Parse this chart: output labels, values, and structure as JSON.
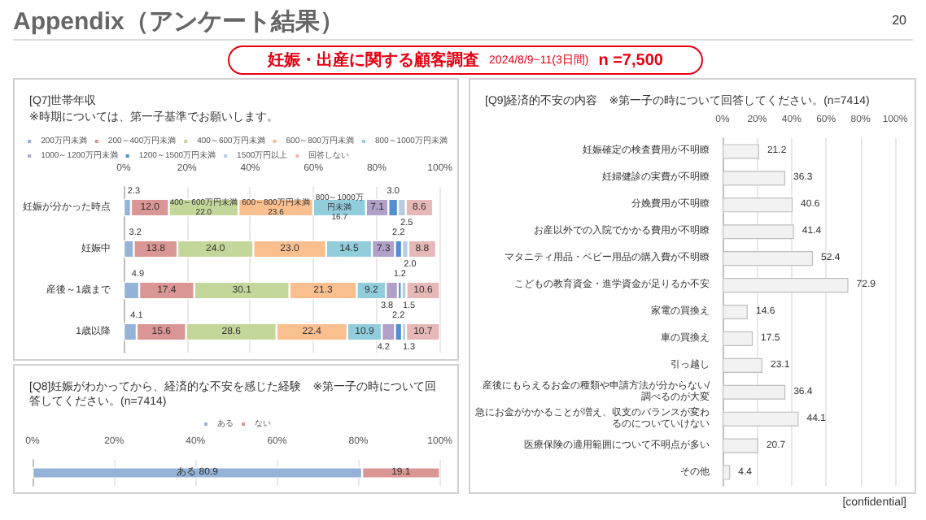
{
  "chart_data": [
    {
      "type": "other",
      "title": "Appendix（アンケート結果）",
      "annotations": [
        "20",
        "妊娠・出産に関する顧客調査",
        "2024/8/9~11(3日間)",
        "n =7,500",
        "[confidential]"
      ]
    },
    {
      "type": "bar",
      "orientation": "horizontal",
      "stacked": true,
      "title": "[Q7]世帯年収",
      "subtitle": "※時期については、第一子基準でお願いします。",
      "legend": "top",
      "grid": "x",
      "categories": [
        "妊娠が分かった時点",
        "妊娠中",
        "産後～1歳まで",
        "1歳以降"
      ],
      "xlim": [
        0,
        100
      ],
      "xticks": [
        {
          "value": 0,
          "label": "0%"
        },
        {
          "value": 20,
          "label": "20%"
        },
        {
          "value": 40,
          "label": "40%"
        },
        {
          "value": 60,
          "label": "60%"
        },
        {
          "value": 80,
          "label": "80%"
        },
        {
          "value": 100,
          "label": "100%"
        }
      ],
      "series": [
        {
          "name": "200万円未満",
          "color": "#95b3d7",
          "values": [
            2.3,
            3.2,
            4.9,
            4.1
          ],
          "value_labels": [
            "2.3",
            "3.2",
            "4.9",
            "4.1"
          ]
        },
        {
          "name": "200～400万円未満",
          "color": "#da9694",
          "values": [
            12.0,
            13.8,
            17.4,
            15.6
          ],
          "value_labels": [
            "12.0",
            "13.8",
            "17.4",
            "15.6"
          ]
        },
        {
          "name": "400～600万円未満",
          "color": "#c4d79b",
          "values": [
            22.0,
            24.0,
            30.1,
            28.6
          ],
          "value_labels": [
            "400～600万円未満\n22.0",
            "24.0",
            "30.1",
            "28.6"
          ]
        },
        {
          "name": "600～800万円未満",
          "color": "#fabf8f",
          "values": [
            23.6,
            23.0,
            21.3,
            22.4
          ],
          "value_labels": [
            "600～800万円未満\n23.6",
            "23.0",
            "21.3",
            "22.4"
          ]
        },
        {
          "name": "800～1000万円未満",
          "color": "#92cddc",
          "values": [
            16.7,
            14.5,
            9.2,
            10.9
          ],
          "value_labels": [
            "800～1000万円未満\n16.7",
            "14.5",
            "9.2",
            "10.9"
          ]
        },
        {
          "name": "1000～1200万円未満",
          "color": "#b1a0c7",
          "values": [
            7.1,
            7.3,
            3.8,
            4.2
          ],
          "value_labels": [
            "7.1",
            "7.3",
            "3.8",
            "4.2"
          ]
        },
        {
          "name": "1200～1500万円未満",
          "color": "#538dd5",
          "values": [
            3.0,
            2.2,
            1.2,
            2.2
          ],
          "value_labels": [
            "3.0",
            "2.2",
            "1.2",
            "2.2"
          ]
        },
        {
          "name": "1500万円以上",
          "color": "#b8cce4",
          "values": [
            2.5,
            2.0,
            1.5,
            1.3
          ],
          "value_labels": [
            "2.5",
            "2.0",
            "1.5",
            "1.3"
          ]
        },
        {
          "name": "回答しない",
          "color": "#e6b8b7",
          "values": [
            8.6,
            8.8,
            10.6,
            10.7
          ],
          "value_labels": [
            "8.6",
            "8.8",
            "10.6",
            "10.7"
          ]
        }
      ]
    },
    {
      "type": "bar",
      "orientation": "horizontal",
      "stacked": true,
      "title": "[Q8]妊娠がわかってから、経済的な不安を感じた経験　※第一子の時について回答してください。(n=7414)",
      "legend": "top",
      "grid": "x",
      "categories": [
        null
      ],
      "xlim": [
        0,
        100
      ],
      "xticks": [
        {
          "value": 0,
          "label": "0%"
        },
        {
          "value": 20,
          "label": "20%"
        },
        {
          "value": 40,
          "label": "40%"
        },
        {
          "value": 60,
          "label": "60%"
        },
        {
          "value": 80,
          "label": "80%"
        },
        {
          "value": 100,
          "label": "100%"
        }
      ],
      "series": [
        {
          "name": "ある",
          "color": "#95b3d7",
          "values": [
            80.9
          ],
          "value_labels": [
            "ある 80.9"
          ]
        },
        {
          "name": "ない",
          "color": "#da9694",
          "values": [
            19.1
          ],
          "value_labels": [
            "19.1"
          ]
        }
      ]
    },
    {
      "type": "bar",
      "orientation": "horizontal",
      "title": "[Q9]経済的不安の内容　※第一子の時について回答してください。(n=7414)",
      "grid": "x",
      "data_labels": true,
      "color": "#f2f2f2",
      "categories": [
        "妊娠確定の検査費用が不明瞭",
        "妊婦健診の実費が不明瞭",
        "分娩費用が不明瞭",
        "お産以外での入院でかかる費用が不明瞭",
        "マタニティ用品・ベビー用品の購入費が不明瞭",
        "こどもの教育資金・進学資金が足りるか不安",
        "家電の買換え",
        "車の買換え",
        "引っ越し",
        "産後にもらえるお金の種類や申請方法が分からない/調べるのが大変",
        "急にお金がかかることが増え、収支のバランスが変わるのについていけない",
        "医療保険の適用範囲について不明点が多い",
        "その他"
      ],
      "values": [
        21.2,
        36.3,
        40.6,
        41.4,
        52.4,
        72.9,
        14.6,
        17.5,
        23.1,
        36.4,
        44.1,
        20.7,
        4.4
      ],
      "xlim": [
        0,
        100
      ],
      "xticks": [
        {
          "value": 0,
          "label": "0%"
        },
        {
          "value": 20,
          "label": "20%"
        },
        {
          "value": 40,
          "label": "40%"
        },
        {
          "value": 60,
          "label": "60%"
        },
        {
          "value": 80,
          "label": "80%"
        },
        {
          "value": 100,
          "label": "100%"
        }
      ]
    }
  ]
}
